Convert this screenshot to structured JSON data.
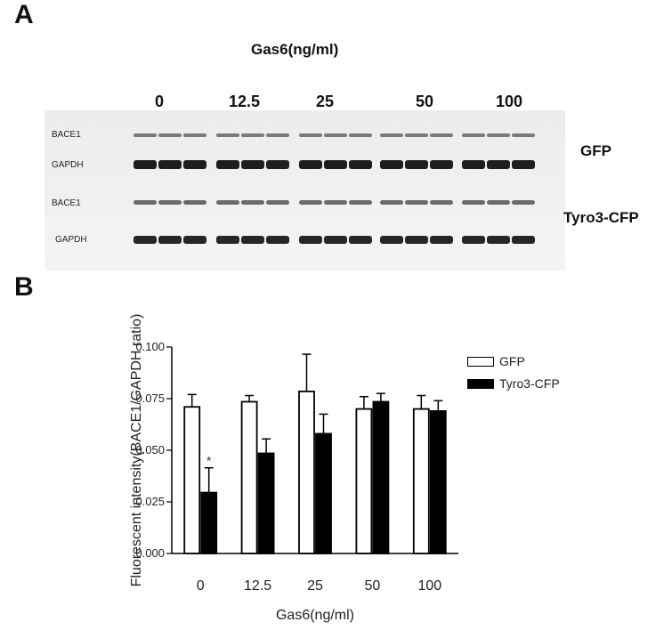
{
  "panel_a": {
    "letter": "A",
    "title": "Gas6(ng/ml)",
    "concentrations": [
      "0",
      "12.5",
      "25",
      "50",
      "100"
    ],
    "blot_rows": [
      "BACE1",
      "GAPDH",
      "BACE1",
      "GAPDH"
    ],
    "conditions": [
      "GFP",
      "Tyro3-CFP"
    ]
  },
  "panel_b": {
    "letter": "B"
  },
  "chart_data": {
    "type": "bar",
    "categories": [
      "0",
      "12.5",
      "25",
      "50",
      "100"
    ],
    "series": [
      {
        "name": "GFP",
        "values": [
          0.071,
          0.0735,
          0.0785,
          0.07,
          0.07
        ],
        "errors": [
          0.006,
          0.003,
          0.018,
          0.006,
          0.0065
        ],
        "color": "#ffffff"
      },
      {
        "name": "Tyro3-CFP",
        "values": [
          0.0295,
          0.0485,
          0.058,
          0.0735,
          0.069
        ],
        "errors": [
          0.012,
          0.007,
          0.0095,
          0.004,
          0.005
        ],
        "color": "#000000"
      }
    ],
    "annotations": [
      {
        "category": "0",
        "series": "Tyro3-CFP",
        "text": "*"
      }
    ],
    "ylabel": "Fluorescent intensity(BACE1/GAPDH ratio)",
    "xlabel": "Gas6(ng/ml)",
    "ylim": [
      0,
      0.1
    ],
    "yticks": [
      "0.000",
      "0.025",
      "0.050",
      "0.075",
      "0.100"
    ],
    "legend_position": "top-right",
    "grid": false
  }
}
